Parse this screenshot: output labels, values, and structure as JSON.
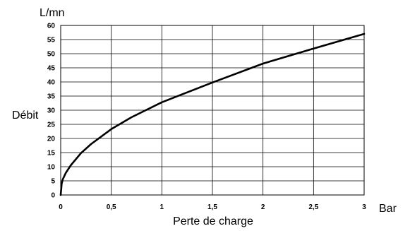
{
  "chart_data": {
    "type": "line",
    "xlabel": "Perte de charge",
    "ylabel": "Débit",
    "x_unit": "Bar",
    "y_unit": "L/mn",
    "xlim": [
      0,
      3
    ],
    "ylim": [
      0,
      60
    ],
    "x_ticks": [
      0,
      0.5,
      1,
      1.5,
      2,
      2.5,
      3
    ],
    "x_tick_labels": [
      "0",
      "0,5",
      "1",
      "1,5",
      "2",
      "2,5",
      "3"
    ],
    "y_ticks": [
      0,
      5,
      10,
      15,
      20,
      25,
      30,
      35,
      40,
      45,
      50,
      55,
      60
    ],
    "y_tick_labels": [
      "0",
      "5",
      "10",
      "15",
      "20",
      "25",
      "30",
      "35",
      "40",
      "45",
      "50",
      "55",
      "60"
    ],
    "grid": true,
    "legend": "none",
    "series": [
      {
        "x": [
          0,
          0.01,
          0.02,
          0.05,
          0.1,
          0.2,
          0.3,
          0.5,
          0.7,
          1.0,
          1.5,
          2.0,
          2.5,
          3.0
        ],
        "y": [
          0,
          4,
          5.5,
          7.8,
          10.5,
          14.8,
          18,
          23.3,
          27.5,
          32.8,
          39.8,
          46.5,
          51.8,
          57
        ]
      }
    ]
  }
}
